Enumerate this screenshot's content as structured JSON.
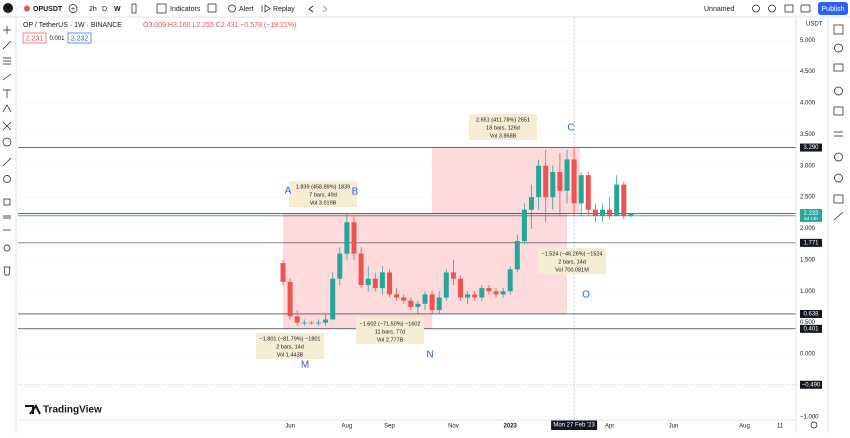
{
  "toolbar": {
    "symbol": "OPUSDT",
    "intervals": [
      "2h",
      "D",
      "W"
    ],
    "buttons": [
      "Indicators",
      "Alert",
      "Replay"
    ],
    "layout_name": "Unnamed",
    "publish": "Publish"
  },
  "legend": {
    "title": "OP / TetherUS · 1W · BINANCE",
    "ohlc": "O3.009 H3.160 L2.255 C2.431 −0.578 (−19.21%)",
    "quote": [
      "2.231",
      "0.001",
      "2.232"
    ]
  },
  "brand": "TradingView",
  "chart_data": {
    "type": "candlestick",
    "currency": "USDT",
    "categories": [
      null,
      "Jun",
      null,
      null,
      null,
      null,
      null,
      null,
      null,
      "Aug",
      null,
      null,
      null,
      null,
      null,
      "Sep",
      null,
      null,
      null,
      null,
      null,
      null,
      null,
      null,
      "Nov",
      null,
      null,
      null,
      null,
      null,
      null,
      null,
      "2023",
      null,
      null,
      null,
      null,
      null,
      null,
      null,
      null,
      null,
      null,
      null,
      null,
      null,
      "Apr",
      null,
      null,
      null,
      null,
      null,
      null,
      null,
      null,
      "Jun",
      null,
      null,
      null,
      null,
      null,
      null,
      null,
      null,
      null,
      "Aug",
      null,
      null,
      null,
      null,
      "11"
    ],
    "open": [
      1.45,
      1.15,
      0.6,
      0.5,
      0.5,
      0.49,
      0.5,
      0.55,
      1.2,
      1.6,
      2.1,
      1.6,
      1.1,
      1.2,
      1.05,
      1.3,
      0.95,
      0.9,
      0.85,
      0.75,
      0.8,
      0.95,
      0.7,
      0.9,
      1.3,
      1.2,
      0.9,
      0.95,
      0.9,
      1.05,
      1.0,
      0.95,
      1.0,
      1.35,
      1.8,
      2.3,
      2.5,
      3.0,
      2.5,
      2.9,
      2.6,
      3.1,
      2.4,
      2.85,
      2.3,
      2.2,
      2.3,
      2.2,
      2.7,
      2.2,
      null,
      null,
      null,
      null,
      null,
      null,
      null,
      null,
      null,
      null,
      null,
      null,
      null,
      null,
      null,
      null,
      null,
      null,
      null,
      null,
      null
    ],
    "high": [
      1.5,
      1.2,
      0.7,
      0.55,
      0.52,
      0.55,
      0.65,
      1.3,
      1.7,
      2.24,
      2.2,
      1.7,
      1.4,
      1.3,
      1.4,
      1.35,
      1.05,
      0.95,
      0.9,
      0.85,
      1.0,
      1.0,
      1.0,
      1.35,
      1.5,
      1.25,
      1.0,
      1.0,
      1.1,
      1.1,
      1.05,
      1.05,
      1.4,
      1.9,
      2.4,
      2.7,
      3.1,
      3.25,
      3.0,
      3.2,
      3.25,
      3.29,
      2.9,
      2.9,
      2.4,
      2.4,
      2.5,
      2.85,
      2.75,
      2.25,
      null,
      null,
      null,
      null,
      null,
      null,
      null,
      null,
      null,
      null,
      null,
      null,
      null,
      null,
      null,
      null,
      null,
      null,
      null,
      null,
      null
    ],
    "low": [
      1.1,
      0.55,
      0.45,
      0.45,
      0.47,
      0.45,
      0.45,
      0.55,
      1.1,
      1.5,
      1.5,
      1.05,
      1.0,
      1.0,
      0.95,
      0.9,
      0.85,
      0.8,
      0.7,
      0.65,
      0.7,
      0.64,
      0.65,
      0.85,
      1.1,
      0.85,
      0.8,
      0.85,
      0.85,
      0.95,
      0.9,
      0.9,
      0.95,
      1.3,
      1.75,
      2.0,
      2.3,
      2.1,
      2.3,
      2.2,
      2.4,
      2.2,
      2.2,
      2.2,
      2.1,
      2.1,
      2.15,
      2.2,
      2.15,
      2.18,
      null,
      null,
      null,
      null,
      null,
      null,
      null,
      null,
      null,
      null,
      null,
      null,
      null,
      null,
      null,
      null,
      null,
      null,
      null,
      null,
      null
    ],
    "close": [
      1.15,
      0.6,
      0.5,
      0.5,
      0.49,
      0.5,
      0.55,
      1.2,
      1.6,
      2.1,
      1.6,
      1.1,
      1.2,
      1.05,
      1.3,
      0.95,
      0.9,
      0.85,
      0.75,
      0.8,
      0.95,
      0.7,
      0.9,
      1.3,
      1.2,
      0.9,
      0.95,
      0.9,
      1.05,
      1.0,
      0.95,
      1.0,
      1.35,
      1.8,
      2.3,
      2.5,
      3.0,
      2.5,
      2.9,
      2.6,
      3.1,
      2.4,
      2.85,
      2.3,
      2.2,
      2.3,
      2.2,
      2.7,
      2.2,
      2.23,
      null,
      null,
      null,
      null,
      null,
      null,
      null,
      null,
      null,
      null,
      null,
      null,
      null,
      null,
      null,
      null,
      null,
      null,
      null,
      null,
      null
    ],
    "up_color": "#26a69a",
    "down_color": "#ef5350",
    "ylim": [
      -1.1,
      5.3
    ],
    "yticks": [
      {
        "value": 5,
        "label": "5.000"
      },
      {
        "value": 4.5,
        "label": "4.500"
      },
      {
        "value": 4,
        "label": "4.000"
      },
      {
        "value": 3.5,
        "label": "3.500"
      },
      {
        "value": 3,
        "label": "3.000"
      },
      {
        "value": 2.5,
        "label": "2.500"
      },
      {
        "value": 2,
        "label": "2.000"
      },
      {
        "value": 1.5,
        "label": "1.500"
      },
      {
        "value": 1,
        "label": "1.000"
      },
      {
        "value": 0.5,
        "label": "0.500"
      },
      {
        "value": 0,
        "label": "0.000"
      },
      {
        "value": -1,
        "label": "−1.000"
      }
    ],
    "levels": [
      {
        "value": 3.29,
        "label": "3.290"
      },
      {
        "value": 2.24,
        "label": "2.240"
      },
      {
        "value": 2.201,
        "label": "2.201"
      },
      {
        "value": 1.771,
        "label": "1.771"
      },
      {
        "value": 0.638,
        "label": "0.638"
      },
      {
        "value": 0.401,
        "label": "0.401"
      },
      {
        "value": -0.49,
        "label": "−0.490"
      }
    ],
    "last_price": {
      "value": 2.233,
      "label": "2.233",
      "countdown": "5d 13h"
    },
    "crosshair": "Mon 27 Feb '23",
    "measures": [
      {
        "lines": [
          "2.651 (411.78%) 2651",
          "18 bars, 126d",
          "Vol 3.868B"
        ]
      },
      {
        "lines": [
          "1.839 (458.89%) 1839",
          "7 bars, 49d",
          "Vol 3.019B"
        ]
      },
      {
        "lines": [
          "−1.524 (−46.26%) −1524",
          "2 bars, 14d",
          "Vol 700.081M"
        ]
      },
      {
        "lines": [
          "−1.801 (−81.79%) −1801",
          "2 bars, 14d",
          "Vol 1.443B"
        ]
      },
      {
        "lines": [
          "−1.602 (−71.50%) −1602",
          "11 bars, 77d",
          "Vol 2.777B"
        ]
      }
    ],
    "points": [
      "A",
      "B",
      "C",
      "O",
      "M",
      "N"
    ]
  }
}
